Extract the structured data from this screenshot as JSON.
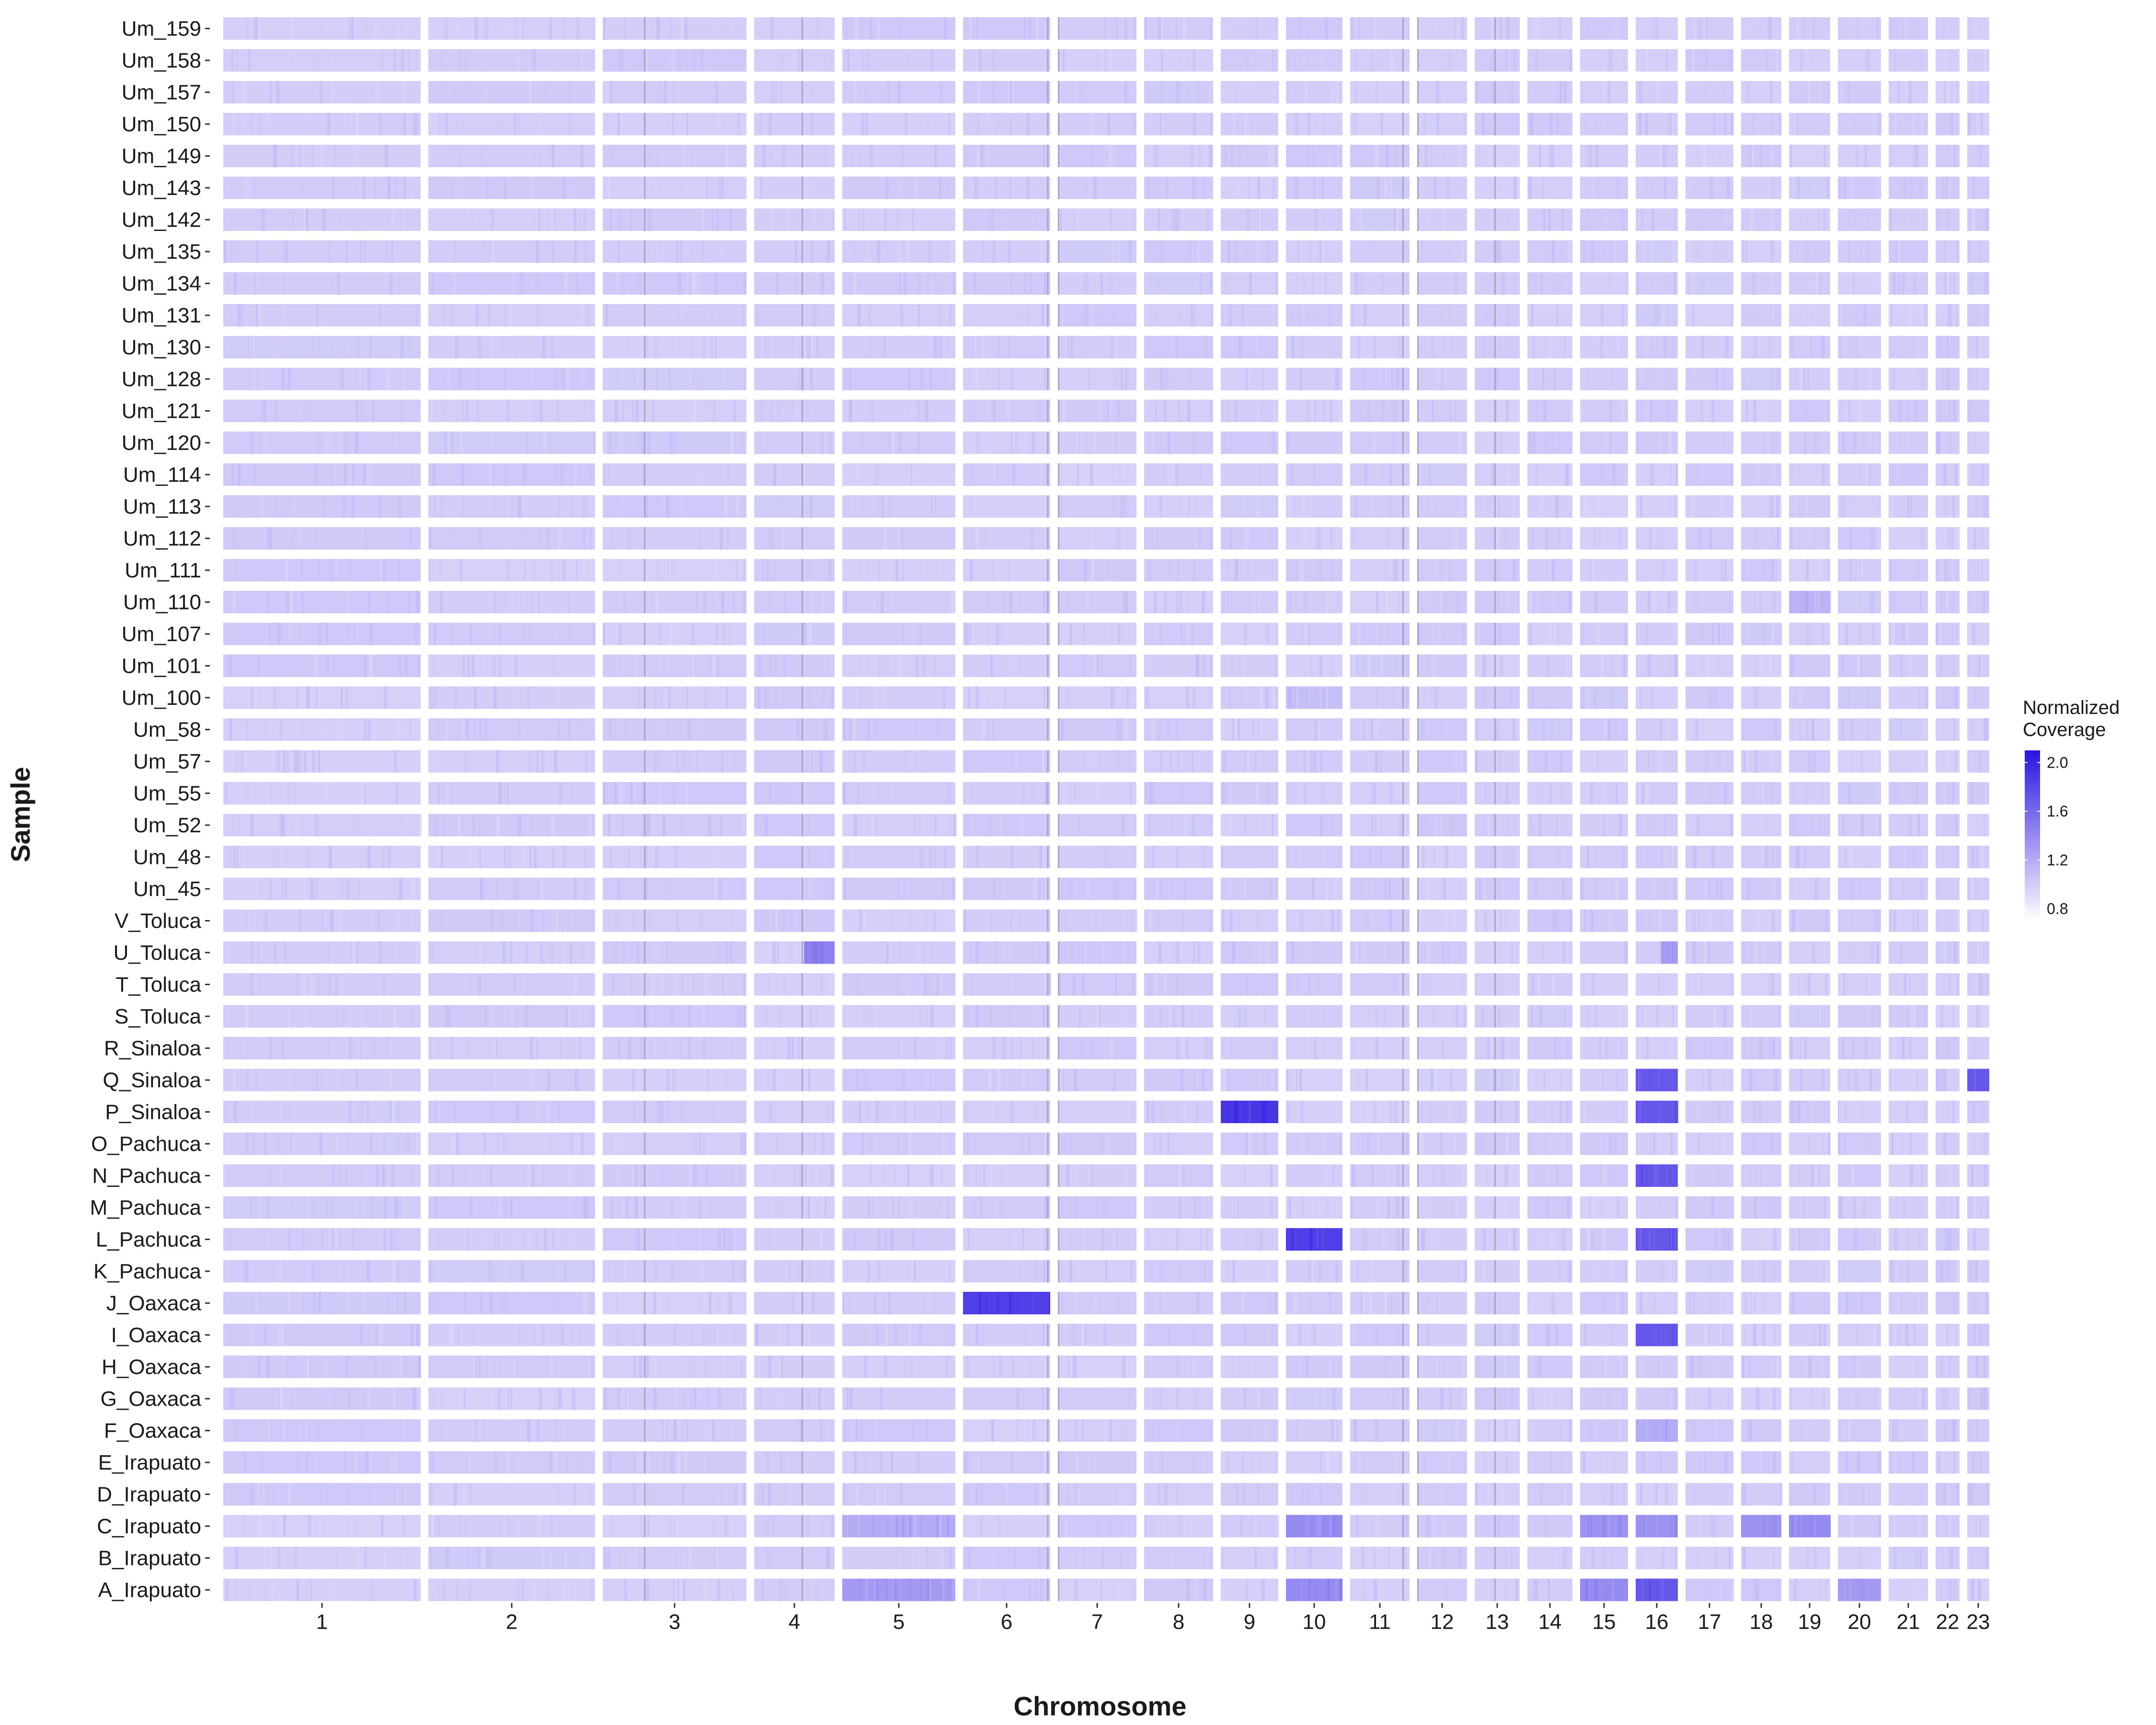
{
  "chart_data": {
    "type": "heatmap",
    "xlabel": "Chromosome",
    "ylabel": "Sample",
    "legend": {
      "title_lines": [
        "Normalized",
        "Coverage"
      ],
      "ticks": [
        "2.0",
        "1.6",
        "1.2",
        "0.8"
      ],
      "range": [
        0.7,
        2.1
      ],
      "colors": [
        "#ffffff",
        "#2a14e0"
      ],
      "placement": "right"
    },
    "chromosomes": [
      "1",
      "2",
      "3",
      "4",
      "5",
      "6",
      "7",
      "8",
      "9",
      "10",
      "11",
      "12",
      "13",
      "14",
      "15",
      "16",
      "17",
      "18",
      "19",
      "20",
      "21",
      "22",
      "23"
    ],
    "samples": [
      "Um_159",
      "Um_158",
      "Um_157",
      "Um_150",
      "Um_149",
      "Um_143",
      "Um_142",
      "Um_135",
      "Um_134",
      "Um_131",
      "Um_130",
      "Um_128",
      "Um_121",
      "Um_120",
      "Um_114",
      "Um_113",
      "Um_112",
      "Um_111",
      "Um_110",
      "Um_107",
      "Um_101",
      "Um_100",
      "Um_58",
      "Um_57",
      "Um_55",
      "Um_52",
      "Um_48",
      "Um_45",
      "V_Toluca",
      "U_Toluca",
      "T_Toluca",
      "S_Toluca",
      "R_Sinaloa",
      "Q_Sinaloa",
      "P_Sinaloa",
      "O_Pachuca",
      "N_Pachuca",
      "M_Pachuca",
      "L_Pachuca",
      "K_Pachuca",
      "J_Oaxaca",
      "I_Oaxaca",
      "H_Oaxaca",
      "G_Oaxaca",
      "F_Oaxaca",
      "E_Irapuato",
      "D_Irapuato",
      "C_Irapuato",
      "B_Irapuato",
      "A_Irapuato"
    ],
    "baseline_coverage": 1.0,
    "elevated_segments": [
      {
        "sample": "Um_110",
        "chromosome": "19",
        "from": 0.0,
        "to": 1.0,
        "value": 1.15
      },
      {
        "sample": "Um_100",
        "chromosome": "10",
        "from": 0.0,
        "to": 1.0,
        "value": 1.08
      },
      {
        "sample": "U_Toluca",
        "chromosome": "4",
        "from": 0.62,
        "to": 1.0,
        "value": 1.45
      },
      {
        "sample": "U_Toluca",
        "chromosome": "16",
        "from": 0.6,
        "to": 1.0,
        "value": 1.3
      },
      {
        "sample": "Q_Sinaloa",
        "chromosome": "16",
        "from": 0.0,
        "to": 1.0,
        "value": 1.7
      },
      {
        "sample": "Q_Sinaloa",
        "chromosome": "23",
        "from": 0.0,
        "to": 1.0,
        "value": 1.7
      },
      {
        "sample": "P_Sinaloa",
        "chromosome": "9",
        "from": 0.0,
        "to": 1.0,
        "value": 1.9
      },
      {
        "sample": "P_Sinaloa",
        "chromosome": "16",
        "from": 0.0,
        "to": 1.0,
        "value": 1.7
      },
      {
        "sample": "N_Pachuca",
        "chromosome": "16",
        "from": 0.0,
        "to": 1.0,
        "value": 1.7
      },
      {
        "sample": "L_Pachuca",
        "chromosome": "10",
        "from": 0.0,
        "to": 1.0,
        "value": 1.85
      },
      {
        "sample": "L_Pachuca",
        "chromosome": "16",
        "from": 0.0,
        "to": 1.0,
        "value": 1.7
      },
      {
        "sample": "J_Oaxaca",
        "chromosome": "6",
        "from": 0.0,
        "to": 1.0,
        "value": 1.85
      },
      {
        "sample": "I_Oaxaca",
        "chromosome": "16",
        "from": 0.0,
        "to": 1.0,
        "value": 1.7
      },
      {
        "sample": "F_Oaxaca",
        "chromosome": "16",
        "from": 0.0,
        "to": 1.0,
        "value": 1.2
      },
      {
        "sample": "C_Irapuato",
        "chromosome": "5",
        "from": 0.0,
        "to": 1.0,
        "value": 1.2
      },
      {
        "sample": "C_Irapuato",
        "chromosome": "10",
        "from": 0.0,
        "to": 1.0,
        "value": 1.4
      },
      {
        "sample": "C_Irapuato",
        "chromosome": "15",
        "from": 0.0,
        "to": 1.0,
        "value": 1.35
      },
      {
        "sample": "C_Irapuato",
        "chromosome": "16",
        "from": 0.0,
        "to": 1.0,
        "value": 1.35
      },
      {
        "sample": "C_Irapuato",
        "chromosome": "18",
        "from": 0.0,
        "to": 1.0,
        "value": 1.35
      },
      {
        "sample": "C_Irapuato",
        "chromosome": "19",
        "from": 0.0,
        "to": 1.0,
        "value": 1.4
      },
      {
        "sample": "A_Irapuato",
        "chromosome": "5",
        "from": 0.0,
        "to": 1.0,
        "value": 1.3
      },
      {
        "sample": "A_Irapuato",
        "chromosome": "10",
        "from": 0.0,
        "to": 1.0,
        "value": 1.4
      },
      {
        "sample": "A_Irapuato",
        "chromosome": "15",
        "from": 0.0,
        "to": 1.0,
        "value": 1.4
      },
      {
        "sample": "A_Irapuato",
        "chromosome": "16",
        "from": 0.0,
        "to": 1.0,
        "value": 1.7
      },
      {
        "sample": "A_Irapuato",
        "chromosome": "20",
        "from": 0.0,
        "to": 1.0,
        "value": 1.3
      }
    ]
  }
}
